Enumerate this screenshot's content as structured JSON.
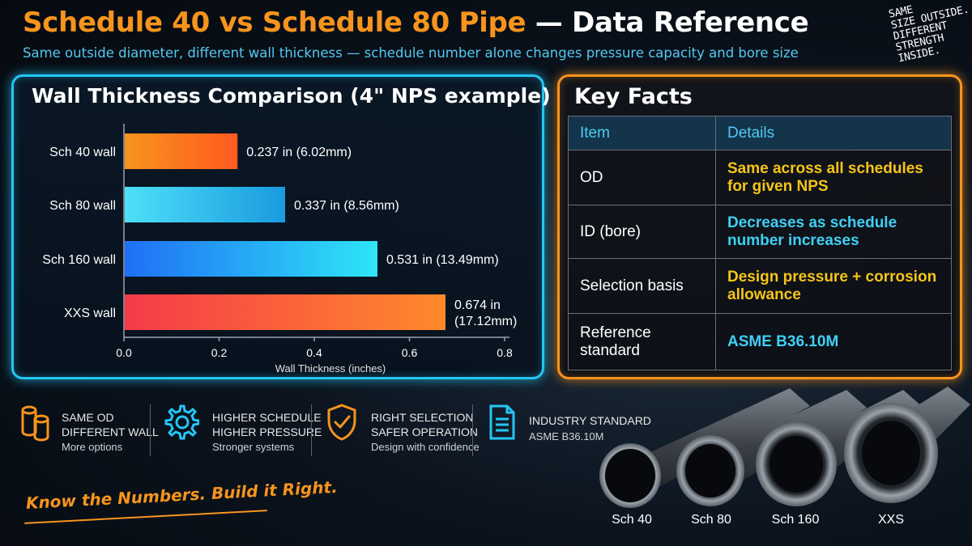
{
  "header": {
    "title_part1": "Schedule 40",
    "title_vs": "vs",
    "title_part2": "Schedule 80 Pipe",
    "title_part3": "— Data Reference",
    "subtitle": "Same outside diameter, different wall thickness — schedule number alone changes pressure capacity and bore size",
    "corner_note_lines": [
      "SAME",
      "SIZE OUTSIDE.",
      "DIFFERENT",
      "STRENGTH",
      "INSIDE."
    ]
  },
  "chart_data": {
    "type": "bar",
    "orientation": "horizontal",
    "title": "Wall Thickness Comparison (4\" NPS example)",
    "xlabel": "Wall Thickness (inches)",
    "ylabel": "",
    "categories": [
      "Sch 40 wall",
      "Sch 80 wall",
      "Sch 160 wall",
      "XXS wall"
    ],
    "values": [
      0.237,
      0.337,
      0.531,
      0.674
    ],
    "data_labels": [
      "0.237 in (6.02mm)",
      "0.337 in (8.56mm)",
      "0.531 in (13.49mm)",
      "0.674 in\n(17.12mm)"
    ],
    "bar_colors": [
      [
        "#f7941d",
        "#ff5a1f"
      ],
      [
        "#4ee0f7",
        "#1a9ae0"
      ],
      [
        "#1f6ff5",
        "#2ee6f5"
      ],
      [
        "#f53a4a",
        "#ff8a2a"
      ]
    ],
    "xlim": [
      0,
      0.8
    ],
    "xticks": [
      0.0,
      0.2,
      0.4,
      0.6,
      0.8
    ],
    "xtick_labels": [
      "0.0",
      "0.2",
      "0.4",
      "0.6",
      "0.8"
    ],
    "grid": false
  },
  "facts": {
    "title": "Key Facts",
    "headers": [
      "Item",
      "Details"
    ],
    "rows": [
      {
        "item": "OD",
        "details": "Same across all schedules for given NPS",
        "color": "yellow"
      },
      {
        "item": "ID (bore)",
        "details": "Decreases as schedule number increases",
        "color": "cyan"
      },
      {
        "item": "Selection basis",
        "details": "Design pressure + corrosion allowance",
        "color": "yellow"
      },
      {
        "item": "Reference standard",
        "details": "ASME B36.10M",
        "color": "cyan"
      }
    ]
  },
  "features": [
    {
      "icon": "cylinders-icon",
      "line1": "SAME OD",
      "line2": "DIFFERENT WALL",
      "line3": "More options",
      "color": "#f7941d"
    },
    {
      "icon": "gear-icon",
      "line1": "HIGHER SCHEDULE",
      "line2": "HIGHER PRESSURE",
      "line3": "Stronger systems",
      "color": "#23c6f5"
    },
    {
      "icon": "shield-check-icon",
      "line1": "RIGHT SELECTION",
      "line2": "SAFER OPERATION",
      "line3": "Design with confidence",
      "color": "#f7941d"
    },
    {
      "icon": "document-icon",
      "line1": "INDUSTRY STANDARD",
      "line2": "ASME B36.10M",
      "line3": "",
      "color": "#23c6f5"
    }
  ],
  "slogan": "Know the Numbers. Build it Right.",
  "pipe_labels": [
    "Sch 40",
    "Sch 80",
    "Sch 160",
    "XXS"
  ]
}
